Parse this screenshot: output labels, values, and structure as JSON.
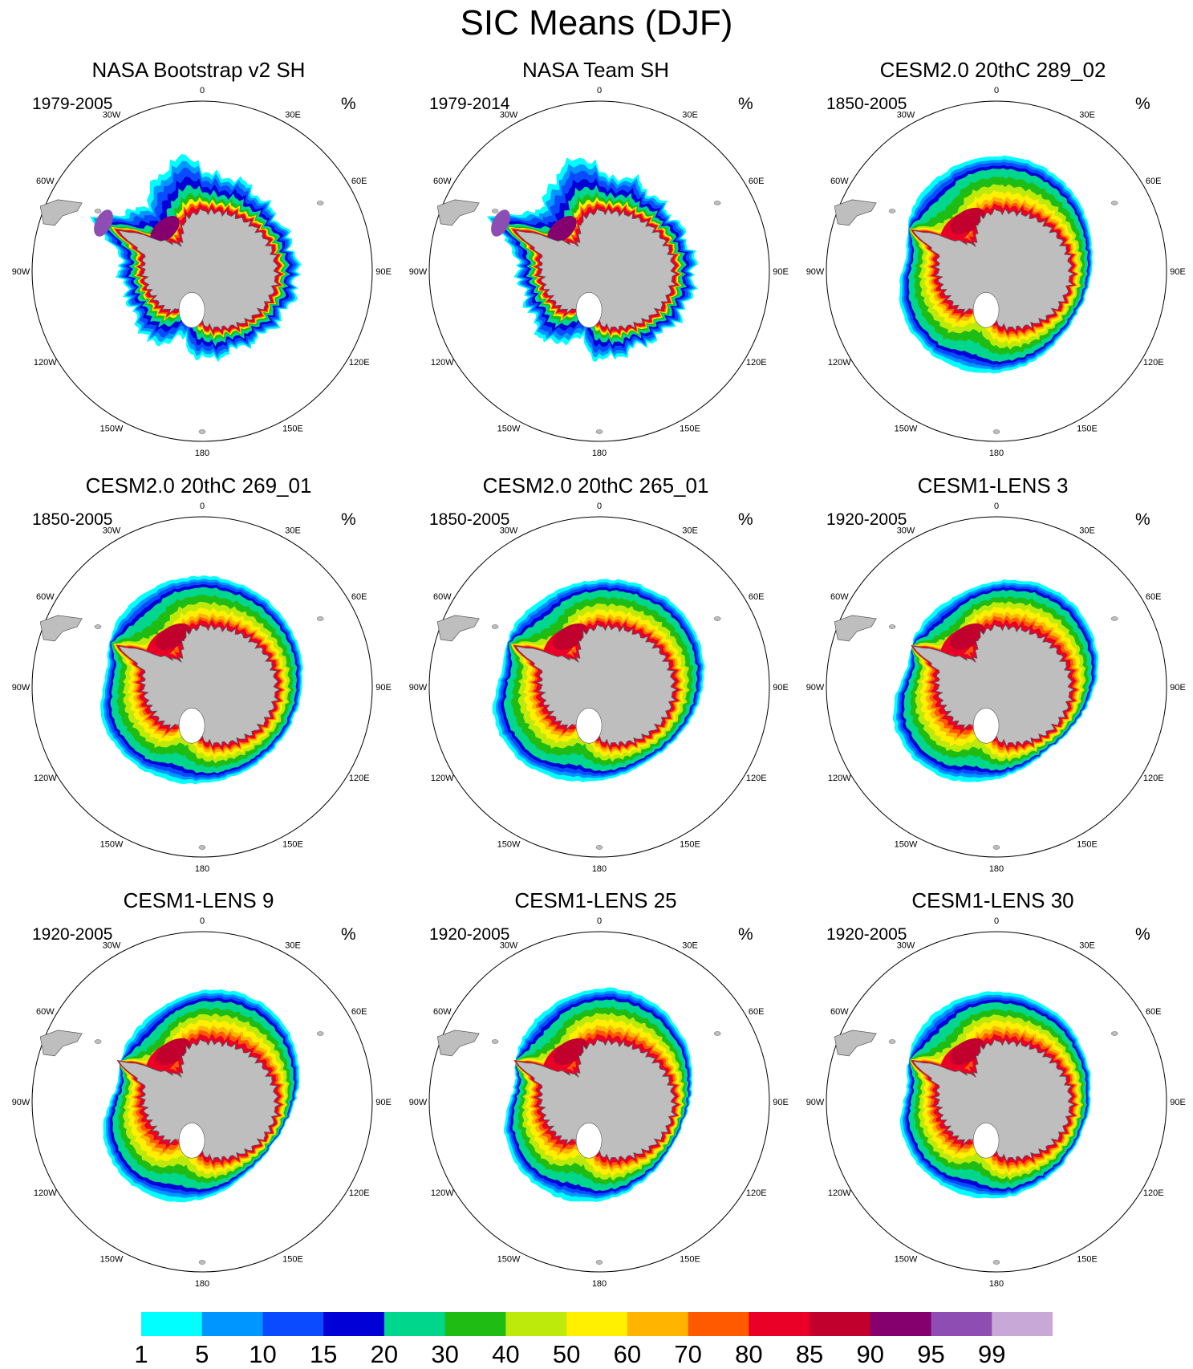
{
  "title": "SIC Means (DJF)",
  "panels": [
    {
      "title": "NASA Bootstrap v2 SH",
      "period": "1979-2005",
      "unit": "%",
      "kind": "obs",
      "variant": 0
    },
    {
      "title": "NASA Team SH",
      "period": "1979-2014",
      "unit": "%",
      "kind": "obs",
      "variant": 1
    },
    {
      "title": "CESM2.0 20thC 289_02",
      "period": "1850-2005",
      "unit": "%",
      "kind": "cesm2",
      "variant": 2
    },
    {
      "title": "CESM2.0 20thC 269_01",
      "period": "1850-2005",
      "unit": "%",
      "kind": "cesm2",
      "variant": 3
    },
    {
      "title": "CESM2.0 20thC 265_01",
      "period": "1850-2005",
      "unit": "%",
      "kind": "cesm2",
      "variant": 4
    },
    {
      "title": "CESM1-LENS 3",
      "period": "1920-2005",
      "unit": "%",
      "kind": "lens",
      "variant": 5
    },
    {
      "title": "CESM1-LENS 9",
      "period": "1920-2005",
      "unit": "%",
      "kind": "lens",
      "variant": 6
    },
    {
      "title": "CESM1-LENS 25",
      "period": "1920-2005",
      "unit": "%",
      "kind": "lens",
      "variant": 7
    },
    {
      "title": "CESM1-LENS 30",
      "period": "1920-2005",
      "unit": "%",
      "kind": "lens",
      "variant": 8
    }
  ],
  "longitude_labels": [
    "0",
    "30E",
    "60E",
    "90E",
    "120E",
    "150E",
    "180",
    "150W",
    "120W",
    "90W",
    "60W",
    "30W"
  ],
  "colorbar": {
    "labels": [
      "1",
      "5",
      "10",
      "15",
      "20",
      "30",
      "40",
      "50",
      "60",
      "70",
      "80",
      "85",
      "90",
      "95",
      "99"
    ],
    "colors": [
      "#00ffff",
      "#0096ff",
      "#0a4bff",
      "#0000d7",
      "#00d68c",
      "#1fbd14",
      "#bdea0a",
      "#ffef00",
      "#ffb400",
      "#ff5a00",
      "#ea0026",
      "#c2002e",
      "#85006e",
      "#8d4db2",
      "#c8a8d6"
    ]
  },
  "land_color": "#bebebe"
}
